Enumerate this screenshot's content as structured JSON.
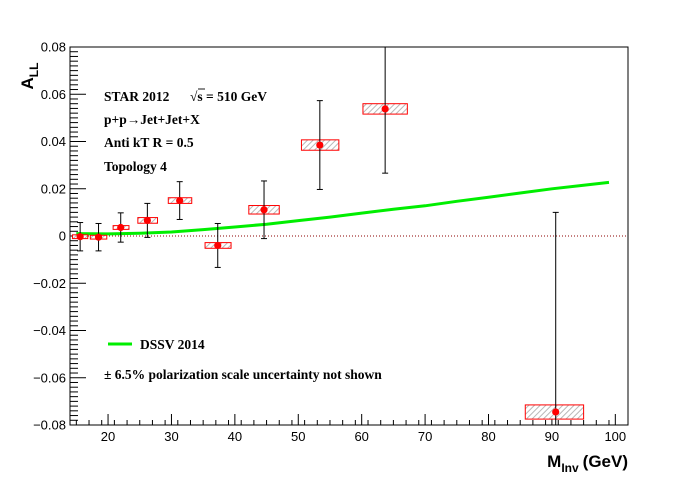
{
  "chart_data": {
    "type": "scatter",
    "xlabel": "M",
    "xlabel_sub": "Inv",
    "xlabel_unit": "(GeV)",
    "ylabel": "A",
    "ylabel_sub": "LL",
    "xlim": [
      14,
      102
    ],
    "ylim": [
      -0.08,
      0.08
    ],
    "x_ticks": [
      20,
      30,
      40,
      50,
      60,
      70,
      80,
      90,
      100
    ],
    "y_ticks": [
      -0.08,
      -0.06,
      -0.04,
      -0.02,
      0,
      0.02,
      0.04,
      0.06,
      0.08
    ],
    "y_tick_labels": [
      "−0.08",
      "−0.06",
      "−0.04",
      "−0.02",
      "0",
      "0.02",
      "0.04",
      "0.06",
      "0.08"
    ],
    "annotations": [
      "STAR 2012",
      "s = 510 GeV",
      "p+p→Jet+Jet+X",
      "Anti kT R = 0.5",
      "Topology 4"
    ],
    "sqrt_symbol": "√",
    "legend": [
      {
        "label": "DSSV 2014",
        "color": "#00ee00"
      }
    ],
    "footnote": "± 6.5% polarization scale uncertainty not shown",
    "zero_line_color": "#8b0000",
    "marker_color": "#ff0000",
    "sysbox_color": "#ff0000",
    "theory_color": "#00ee00",
    "series": [
      {
        "name": "STAR 2012",
        "points": [
          {
            "x": 15.6,
            "y": -0.0003,
            "err": 0.006,
            "xl": 14.4,
            "xh": 16.8,
            "sys": 0.0008
          },
          {
            "x": 18.5,
            "y": -0.0005,
            "err": 0.0058,
            "xl": 17.2,
            "xh": 19.8,
            "sys": 0.0008
          },
          {
            "x": 22.0,
            "y": 0.0036,
            "err": 0.0062,
            "xl": 20.8,
            "xh": 23.3,
            "sys": 0.0008
          },
          {
            "x": 26.2,
            "y": 0.0066,
            "err": 0.0072,
            "xl": 24.7,
            "xh": 27.8,
            "sys": 0.0012
          },
          {
            "x": 31.3,
            "y": 0.015,
            "err": 0.008,
            "xl": 29.5,
            "xh": 33.2,
            "sys": 0.0012
          },
          {
            "x": 37.3,
            "y": -0.004,
            "err": 0.0093,
            "xl": 35.3,
            "xh": 39.4,
            "sys": 0.0012
          },
          {
            "x": 44.6,
            "y": 0.0111,
            "err": 0.0122,
            "xl": 42.2,
            "xh": 47.0,
            "sys": 0.0018
          },
          {
            "x": 53.4,
            "y": 0.0385,
            "err": 0.0188,
            "xl": 50.5,
            "xh": 56.4,
            "sys": 0.0022
          },
          {
            "x": 63.7,
            "y": 0.0538,
            "err": 0.0272,
            "xl": 60.2,
            "xh": 67.2,
            "sys": 0.0022
          },
          {
            "x": 90.6,
            "y": -0.0745,
            "err": 0.0845,
            "xl": 85.8,
            "xh": 95.0,
            "sys": 0.003
          }
        ]
      }
    ],
    "theory": {
      "name": "DSSV 2014",
      "x": [
        15,
        20,
        25,
        30,
        35,
        40,
        45,
        50,
        55,
        60,
        65,
        70,
        75,
        80,
        85,
        90,
        95,
        99
      ],
      "y": [
        0.001,
        0.0009,
        0.0012,
        0.0017,
        0.0027,
        0.0038,
        0.005,
        0.0065,
        0.008,
        0.0097,
        0.0113,
        0.0128,
        0.0147,
        0.0164,
        0.0182,
        0.02,
        0.0215,
        0.0227
      ]
    }
  }
}
